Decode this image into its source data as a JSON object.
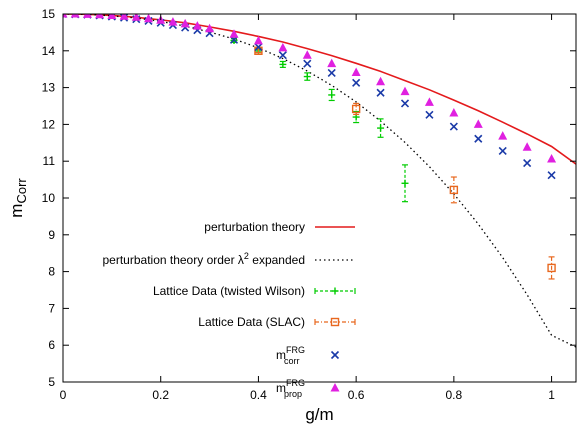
{
  "chart_data": {
    "type": "scatter",
    "title": "",
    "xlabel": "g/m",
    "ylabel": {
      "base": "m",
      "sub": "Corr"
    },
    "xlim": [
      0,
      1.05
    ],
    "ylim": [
      5,
      15
    ],
    "xticks": [
      "0",
      "0.2",
      "0.4",
      "0.6",
      "0.8",
      "1"
    ],
    "yticks": [
      "5",
      "6",
      "7",
      "8",
      "9",
      "10",
      "11",
      "12",
      "13",
      "14",
      "15"
    ],
    "grid": false,
    "legend_position": "left-center",
    "colors": {
      "perturbation": "#e41a1c",
      "expanded": "#000000",
      "twisted_wilson": "#00cc00",
      "slac": "#e8681f",
      "m_corr": "#1a3aa8",
      "m_prop": "#e020e0"
    },
    "series": [
      {
        "name": "perturbation theory",
        "type": "line",
        "style": "solid",
        "x": [
          0,
          0.05,
          0.1,
          0.15,
          0.2,
          0.25,
          0.3,
          0.35,
          0.4,
          0.45,
          0.5,
          0.55,
          0.6,
          0.65,
          0.7,
          0.75,
          0.8,
          0.85,
          0.9,
          0.95,
          1.0,
          1.05
        ],
        "y": [
          15.0,
          14.99,
          14.96,
          14.91,
          14.84,
          14.76,
          14.65,
          14.53,
          14.39,
          14.24,
          14.06,
          13.87,
          13.66,
          13.44,
          13.19,
          12.94,
          12.66,
          12.37,
          12.06,
          11.74,
          11.4,
          10.92
        ]
      },
      {
        "name": "perturbation theory order λ² expanded",
        "name_main": "perturbation theory order λ",
        "name_sup": "2",
        "name_rest": " expanded",
        "type": "line",
        "style": "dotted",
        "x": [
          0,
          0.05,
          0.1,
          0.15,
          0.2,
          0.25,
          0.3,
          0.35,
          0.4,
          0.45,
          0.5,
          0.55,
          0.6,
          0.65,
          0.7,
          0.75,
          0.8,
          0.85,
          0.9,
          0.95,
          1.0,
          1.05
        ],
        "y": [
          15.0,
          14.99,
          14.95,
          14.89,
          14.8,
          14.67,
          14.51,
          14.32,
          14.08,
          13.79,
          13.45,
          13.06,
          12.61,
          12.09,
          11.51,
          10.85,
          10.11,
          9.29,
          8.38,
          7.37,
          6.27,
          5.95
        ]
      },
      {
        "name": "Lattice Data (twisted Wilson)",
        "type": "errorbar",
        "marker": "plus",
        "x": [
          0.35,
          0.4,
          0.45,
          0.5,
          0.55,
          0.6,
          0.65,
          0.7
        ],
        "y": [
          14.28,
          14.02,
          13.63,
          13.3,
          12.8,
          12.2,
          11.9,
          10.4
        ],
        "err": [
          0.05,
          0.05,
          0.08,
          0.1,
          0.15,
          0.15,
          0.25,
          0.5
        ]
      },
      {
        "name": "Lattice Data (SLAC)",
        "type": "errorbar",
        "marker": "square",
        "x": [
          0.4,
          0.6,
          0.8,
          1.0
        ],
        "y": [
          14.0,
          12.42,
          10.22,
          8.1
        ],
        "err": [
          0.05,
          0.15,
          0.35,
          0.3
        ]
      },
      {
        "name": "m_corr^FRG",
        "name_base": "m",
        "name_sub": "corr",
        "name_sup": "FRG",
        "type": "scatter",
        "marker": "x",
        "x": [
          0.0,
          0.025,
          0.05,
          0.075,
          0.1,
          0.125,
          0.15,
          0.175,
          0.2,
          0.225,
          0.25,
          0.275,
          0.3,
          0.35,
          0.4,
          0.45,
          0.5,
          0.55,
          0.6,
          0.65,
          0.7,
          0.75,
          0.8,
          0.85,
          0.9,
          0.95,
          1.0
        ],
        "y": [
          15.0,
          14.99,
          14.98,
          14.96,
          14.93,
          14.9,
          14.86,
          14.81,
          14.76,
          14.7,
          14.63,
          14.56,
          14.48,
          14.3,
          14.1,
          13.88,
          13.65,
          13.4,
          13.13,
          12.86,
          12.57,
          12.26,
          11.94,
          11.61,
          11.28,
          10.95,
          10.62
        ]
      },
      {
        "name": "m_prop^FRG",
        "name_base": "m",
        "name_sub": "prop",
        "name_sup": "FRG",
        "type": "scatter",
        "marker": "triangle",
        "x": [
          0.0,
          0.025,
          0.05,
          0.075,
          0.1,
          0.125,
          0.15,
          0.175,
          0.2,
          0.225,
          0.25,
          0.275,
          0.3,
          0.35,
          0.4,
          0.45,
          0.5,
          0.55,
          0.6,
          0.65,
          0.7,
          0.75,
          0.8,
          0.85,
          0.9,
          0.95,
          1.0
        ],
        "y": [
          15.0,
          15.0,
          14.99,
          14.98,
          14.96,
          14.94,
          14.91,
          14.87,
          14.83,
          14.78,
          14.73,
          14.67,
          14.6,
          14.45,
          14.27,
          14.08,
          13.88,
          13.65,
          13.41,
          13.16,
          12.89,
          12.6,
          12.31,
          12.0,
          11.68,
          11.38,
          11.06
        ]
      }
    ]
  }
}
